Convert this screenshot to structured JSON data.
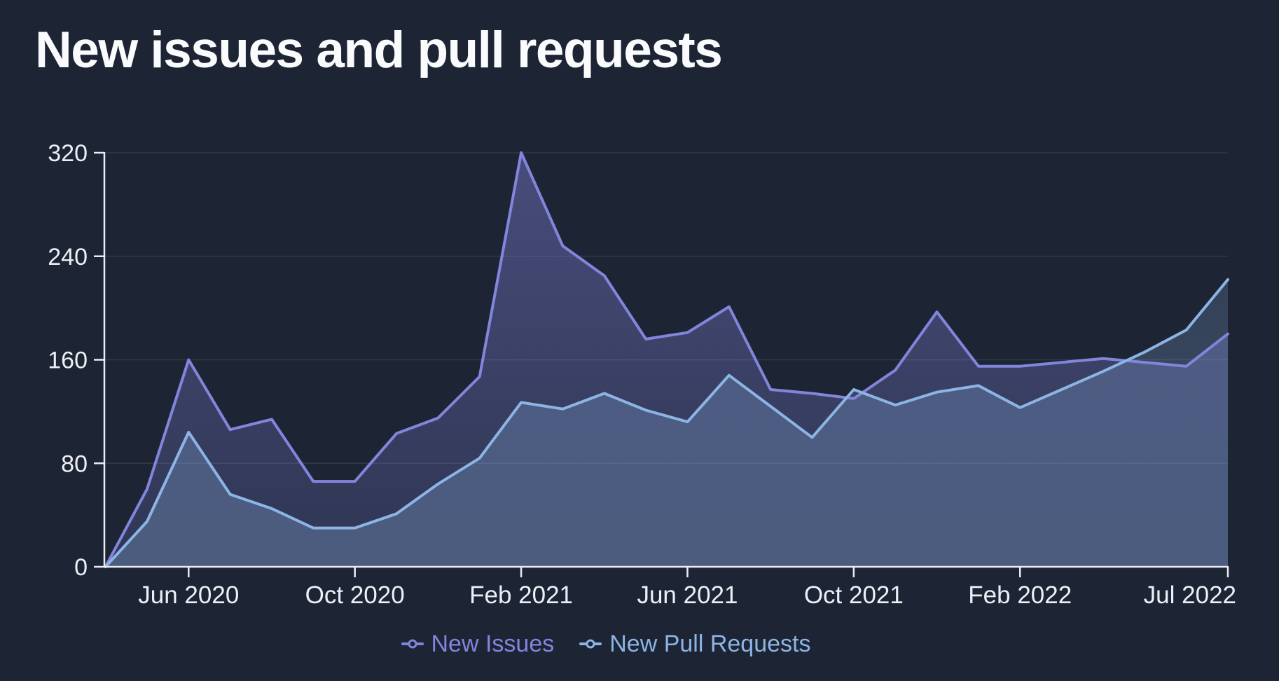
{
  "title": "New issues and pull requests",
  "colors": {
    "background": "#1D2434",
    "axis": "#E9ECF2",
    "grid": "rgba(233,236,242,0.10)",
    "tick_label": "#EDEFF5",
    "issues": "#8285DC",
    "pull_requests": "#8CB4E4"
  },
  "chart_data": {
    "type": "area",
    "title": "New issues and pull requests",
    "xlabel": "",
    "ylabel": "",
    "ylim": [
      0,
      320
    ],
    "y_ticks": [
      0,
      80,
      160,
      240,
      320
    ],
    "grid": true,
    "legend_position": "bottom",
    "x": [
      "Apr 2020",
      "May 2020",
      "Jun 2020",
      "Jul 2020",
      "Aug 2020",
      "Sep 2020",
      "Oct 2020",
      "Nov 2020",
      "Dec 2020",
      "Jan 2021",
      "Feb 2021",
      "Mar 2021",
      "Apr 2021",
      "May 2021",
      "Jun 2021",
      "Jul 2021",
      "Aug 2021",
      "Sep 2021",
      "Oct 2021",
      "Nov 2021",
      "Dec 2021",
      "Jan 2022",
      "Feb 2022",
      "Mar 2022",
      "Apr 2022",
      "May 2022",
      "Jun 2022",
      "Jul 2022"
    ],
    "x_ticks": [
      {
        "index": 2,
        "label": "Jun 2020"
      },
      {
        "index": 6,
        "label": "Oct 2020"
      },
      {
        "index": 10,
        "label": "Feb 2021"
      },
      {
        "index": 14,
        "label": "Jun 2021"
      },
      {
        "index": 18,
        "label": "Oct 2021"
      },
      {
        "index": 22,
        "label": "Feb 2022"
      },
      {
        "index": 27,
        "label": "Jul 2022"
      }
    ],
    "series": [
      {
        "name": "New Issues",
        "color": "#8285DC",
        "values": [
          0,
          60,
          160,
          106,
          114,
          66,
          66,
          103,
          115,
          147,
          320,
          248,
          225,
          176,
          181,
          201,
          137,
          134,
          130,
          152,
          197,
          155,
          155,
          158,
          161,
          158,
          155,
          180
        ]
      },
      {
        "name": "New Pull Requests",
        "color": "#8CB4E4",
        "values": [
          0,
          35,
          104,
          56,
          45,
          30,
          30,
          41,
          64,
          84,
          127,
          122,
          134,
          121,
          112,
          148,
          124,
          100,
          137,
          125,
          135,
          140,
          123,
          137,
          151,
          166,
          183,
          222
        ]
      }
    ]
  }
}
